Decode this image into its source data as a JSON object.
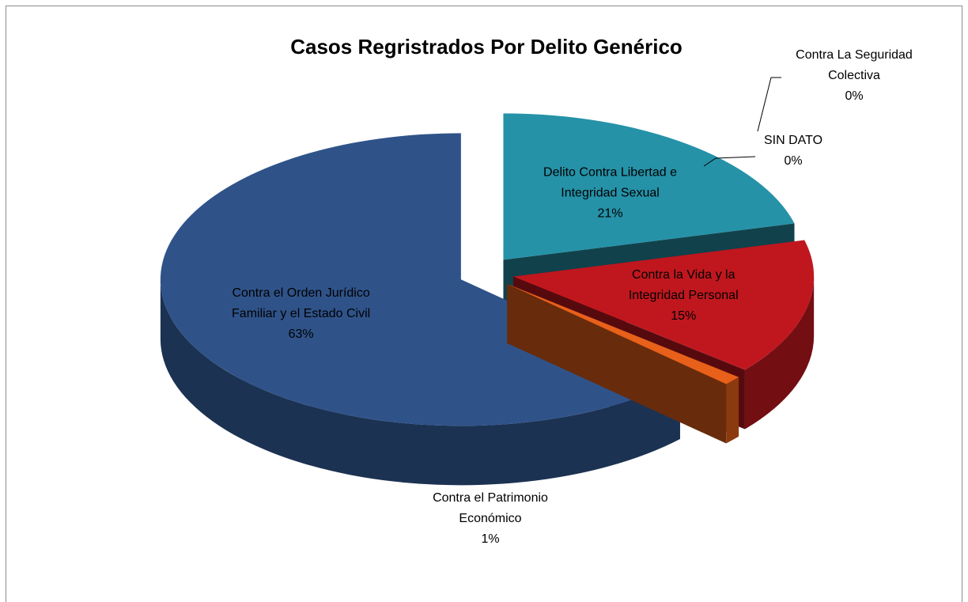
{
  "chart_data": {
    "type": "pie",
    "title": "Casos Regristrados Por Delito Genérico",
    "categories": [
      "Contra La Seguridad Colectiva",
      "SIN DATO",
      "Delito Contra Libertad e Integridad Sexual",
      "Contra la Vida y la Integridad Personal",
      "Contra el Patrimonio Económico",
      "Contra el Orden Jurídico Familiar y el Estado Civil"
    ],
    "values": [
      0,
      0,
      21,
      15,
      1,
      63
    ],
    "value_labels": [
      "0%",
      "0%",
      "21%",
      "15%",
      "1%",
      "63%"
    ],
    "colors": [
      "#e5b418",
      "#5a2028",
      "#2592a8",
      "#c0171f",
      "#e8601a",
      "#2f5389"
    ]
  }
}
